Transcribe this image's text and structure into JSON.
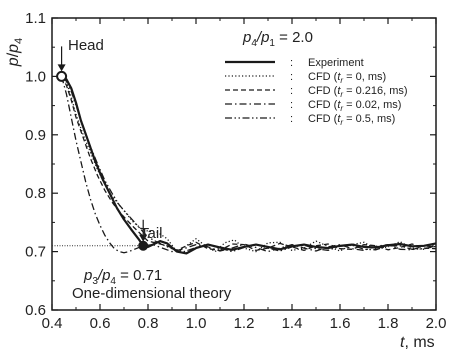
{
  "chart_data": {
    "type": "line",
    "xlabel": "t, ms",
    "ylabel": "p/p4",
    "xlim": [
      0.4,
      2.0
    ],
    "ylim": [
      0.6,
      1.1
    ],
    "xticks": [
      0.4,
      0.6,
      0.8,
      1.0,
      1.2,
      1.4,
      1.6,
      1.8,
      2.0
    ],
    "yticks": [
      0.6,
      0.7,
      0.8,
      0.9,
      1.0,
      1.1
    ],
    "xtick_labels": [
      "0.4",
      "0.6",
      "0.8",
      "1.0",
      "1.2",
      "1.4",
      "1.6",
      "1.8",
      "2.0"
    ],
    "ytick_labels": [
      "0.6",
      "0.7",
      "0.8",
      "0.9",
      "1.0",
      "1.1"
    ],
    "legend_title": "p4/p1 = 2.0",
    "legend_position": "top-right",
    "series": [
      {
        "name": "Experiment",
        "style": "solid",
        "x": [
          0.44,
          0.46,
          0.48,
          0.5,
          0.52,
          0.55,
          0.58,
          0.61,
          0.64,
          0.67,
          0.7,
          0.73,
          0.76,
          0.78,
          0.8,
          0.82,
          0.85,
          0.88,
          0.92,
          0.96,
          1.0,
          1.05,
          1.1,
          1.15,
          1.2,
          1.25,
          1.3,
          1.35,
          1.4,
          1.45,
          1.5,
          1.55,
          1.6,
          1.65,
          1.7,
          1.75,
          1.8,
          1.85,
          1.9,
          1.95,
          2.0
        ],
        "y": [
          1.0,
          0.995,
          0.98,
          0.955,
          0.925,
          0.89,
          0.855,
          0.825,
          0.8,
          0.775,
          0.755,
          0.738,
          0.722,
          0.71,
          0.708,
          0.712,
          0.718,
          0.714,
          0.7,
          0.697,
          0.706,
          0.712,
          0.707,
          0.703,
          0.708,
          0.712,
          0.708,
          0.704,
          0.709,
          0.712,
          0.708,
          0.706,
          0.71,
          0.712,
          0.708,
          0.707,
          0.711,
          0.713,
          0.709,
          0.71,
          0.714
        ]
      },
      {
        "name": "CFD (tr = 0, ms)",
        "style": "dotted",
        "x": [
          0.44,
          0.46,
          0.48,
          0.5,
          0.53,
          0.56,
          0.59,
          0.62,
          0.65,
          0.68,
          0.71,
          0.74,
          0.77,
          0.8,
          0.84,
          0.88,
          0.92,
          0.96,
          1.0,
          1.04,
          1.08,
          1.12,
          1.16,
          1.2,
          1.25,
          1.3,
          1.35,
          1.4,
          1.45,
          1.5,
          1.55,
          1.6,
          1.65,
          1.7,
          1.75,
          1.8,
          1.85,
          1.9,
          1.95,
          2.0
        ],
        "y": [
          1.0,
          0.99,
          0.965,
          0.935,
          0.9,
          0.87,
          0.84,
          0.815,
          0.795,
          0.78,
          0.765,
          0.75,
          0.74,
          0.735,
          0.733,
          0.722,
          0.7,
          0.71,
          0.722,
          0.71,
          0.7,
          0.715,
          0.72,
          0.706,
          0.7,
          0.715,
          0.716,
          0.702,
          0.706,
          0.718,
          0.709,
          0.701,
          0.712,
          0.716,
          0.704,
          0.708,
          0.717,
          0.706,
          0.704,
          0.713
        ]
      },
      {
        "name": "CFD (tr = 0.216, ms)",
        "style": "dashed",
        "x": [
          0.44,
          0.46,
          0.48,
          0.5,
          0.53,
          0.56,
          0.59,
          0.62,
          0.65,
          0.68,
          0.71,
          0.74,
          0.77,
          0.8,
          0.84,
          0.88,
          0.92,
          0.96,
          1.0,
          1.05,
          1.1,
          1.15,
          1.2,
          1.25,
          1.3,
          1.35,
          1.4,
          1.45,
          1.5,
          1.55,
          1.6,
          1.65,
          1.7,
          1.75,
          1.8,
          1.85,
          1.9,
          1.95,
          2.0
        ],
        "y": [
          1.0,
          0.985,
          0.96,
          0.93,
          0.895,
          0.86,
          0.83,
          0.805,
          0.785,
          0.768,
          0.755,
          0.742,
          0.73,
          0.718,
          0.714,
          0.71,
          0.702,
          0.71,
          0.716,
          0.705,
          0.702,
          0.713,
          0.712,
          0.702,
          0.706,
          0.714,
          0.708,
          0.702,
          0.71,
          0.713,
          0.705,
          0.704,
          0.712,
          0.71,
          0.703,
          0.707,
          0.713,
          0.706,
          0.705
        ]
      },
      {
        "name": "CFD (tr = 0.02, ms)",
        "style": "dash-dot",
        "x": [
          0.44,
          0.46,
          0.48,
          0.5,
          0.52,
          0.54,
          0.56,
          0.58,
          0.6,
          0.62,
          0.64,
          0.66,
          0.68,
          0.7,
          0.72,
          0.75,
          0.78,
          0.82,
          0.86,
          0.9,
          0.95,
          1.0,
          1.05,
          1.1,
          1.15,
          1.2,
          1.25,
          1.3,
          1.35,
          1.4,
          1.45,
          1.5,
          1.55,
          1.6,
          1.65,
          1.7,
          1.75,
          1.8,
          1.85,
          1.9,
          1.95,
          2.0
        ],
        "y": [
          1.0,
          0.97,
          0.93,
          0.89,
          0.855,
          0.82,
          0.79,
          0.765,
          0.745,
          0.728,
          0.715,
          0.705,
          0.7,
          0.698,
          0.7,
          0.705,
          0.71,
          0.712,
          0.706,
          0.7,
          0.705,
          0.712,
          0.708,
          0.701,
          0.706,
          0.713,
          0.707,
          0.7,
          0.706,
          0.712,
          0.706,
          0.701,
          0.708,
          0.712,
          0.705,
          0.702,
          0.709,
          0.712,
          0.704,
          0.703,
          0.71,
          0.708
        ]
      },
      {
        "name": "CFD (tr = 0.5, ms)",
        "style": "dash-dot-dot",
        "x": [
          0.44,
          0.46,
          0.48,
          0.5,
          0.53,
          0.56,
          0.59,
          0.62,
          0.65,
          0.68,
          0.71,
          0.74,
          0.77,
          0.8,
          0.83,
          0.86,
          0.9,
          0.95,
          1.0,
          1.05,
          1.1,
          1.15,
          1.2,
          1.25,
          1.3,
          1.35,
          1.4,
          1.45,
          1.5,
          1.55,
          1.6,
          1.65,
          1.7,
          1.75,
          1.8,
          1.85,
          1.9,
          1.95,
          2.0
        ],
        "y": [
          1.0,
          0.992,
          0.975,
          0.95,
          0.915,
          0.88,
          0.85,
          0.822,
          0.8,
          0.78,
          0.766,
          0.752,
          0.738,
          0.725,
          0.718,
          0.712,
          0.705,
          0.7,
          0.707,
          0.712,
          0.706,
          0.7,
          0.707,
          0.712,
          0.706,
          0.701,
          0.708,
          0.711,
          0.705,
          0.702,
          0.709,
          0.711,
          0.704,
          0.703,
          0.71,
          0.71,
          0.704,
          0.705,
          0.709
        ]
      }
    ],
    "reference_line": {
      "y": 0.71,
      "x_start": 0.4,
      "x_end": 0.8
    },
    "annotations": {
      "head": {
        "label": "Head",
        "x": 0.44,
        "y": 1.0
      },
      "tail": {
        "label": "Tail",
        "x": 0.78,
        "y": 0.71
      },
      "theory_ratio": "p3/p4 = 0.71",
      "theory_name": "One-dimensional theory"
    }
  },
  "legend": {
    "title_prefix": "p",
    "title_sub1": "4",
    "title_mid": "/p",
    "title_sub2": "1",
    "title_suffix": " = 2.0",
    "entries": [
      {
        "label": "Experiment",
        "style": "solid"
      },
      {
        "label_pre": "CFD (",
        "t": "t",
        "sub": "r",
        "label_post": " = 0, ms)",
        "style": "dotted"
      },
      {
        "label_pre": "CFD (",
        "t": "t",
        "sub": "r",
        "label_post": " = 0.216, ms)",
        "style": "dashed"
      },
      {
        "label_pre": "CFD (",
        "t": "t",
        "sub": "r",
        "label_post": " = 0.02, ms)",
        "style": "dash-dot"
      },
      {
        "label_pre": "CFD (",
        "t": "t",
        "sub": "r",
        "label_post": " = 0.5, ms)",
        "style": "dash-dot-dot"
      }
    ],
    "separator": ":"
  },
  "labels": {
    "ylabel_p": "p",
    "ylabel_slash": "/",
    "ylabel_p2": "p",
    "ylabel_sub": "4",
    "xlabel_t": "t",
    "xlabel_unit": ", ms",
    "head": "Head",
    "tail": "Tail",
    "theory_p3": "p",
    "theory_sub3": "3",
    "theory_slash": "/p",
    "theory_sub4": "4",
    "theory_value": " = 0.71",
    "theory_name": "One-dimensional theory"
  },
  "colors": {
    "line": "#1a1a1a",
    "reference": "#333333",
    "marker_fill": "#ffffff"
  }
}
